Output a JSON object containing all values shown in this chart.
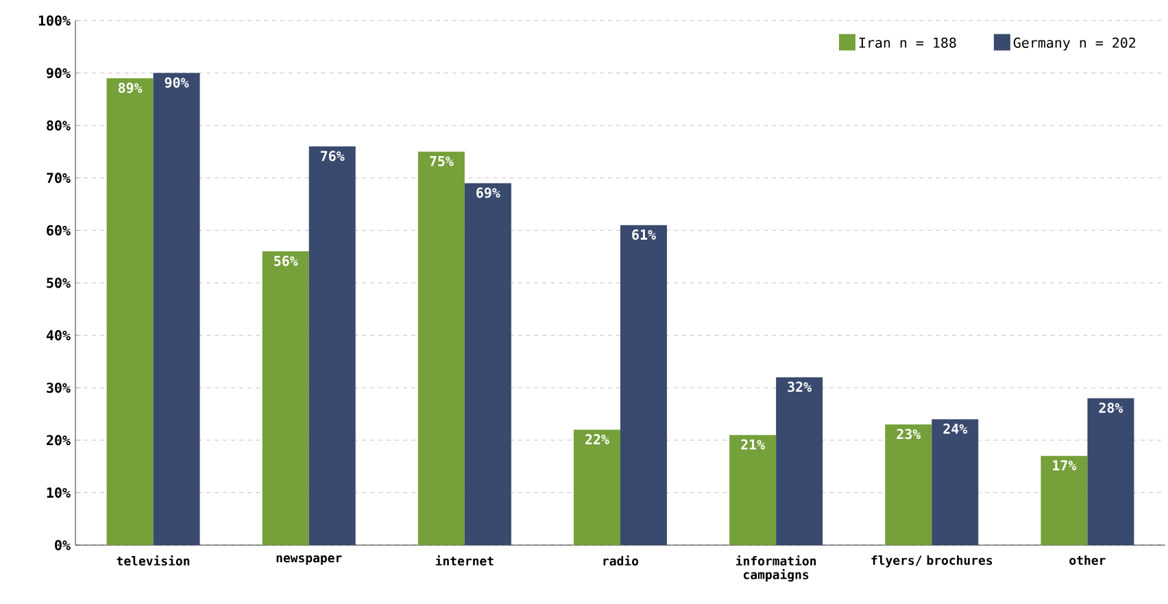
{
  "chart_data": {
    "type": "bar",
    "categories": [
      "television",
      "newspaper",
      "internet",
      "radio",
      "information campaigns",
      "flyers/ brochures",
      "other"
    ],
    "series": [
      {
        "name": "Iran n = 188",
        "color": "#76a03a",
        "values": [
          89,
          56,
          75,
          22,
          21,
          23,
          17
        ],
        "value_labels": [
          "89%",
          "56%",
          "75%",
          "22%",
          "21%",
          "23%",
          "17%"
        ]
      },
      {
        "name": "Germany n = 202",
        "color": "#3a4a6e",
        "values": [
          90,
          76,
          69,
          61,
          32,
          24,
          28
        ],
        "value_labels": [
          "90%",
          "76%",
          "69%",
          "61%",
          "32%",
          "24%",
          "28%"
        ]
      }
    ],
    "ylim": [
      0,
      100
    ],
    "yticks": [
      {
        "value": 0,
        "label": "0%"
      },
      {
        "value": 10,
        "label": "10%"
      },
      {
        "value": 20,
        "label": "20%"
      },
      {
        "value": 30,
        "label": "30%"
      },
      {
        "value": 40,
        "label": "40%"
      },
      {
        "value": 50,
        "label": "50%"
      },
      {
        "value": 60,
        "label": "60%"
      },
      {
        "value": 70,
        "label": "70%"
      },
      {
        "value": 80,
        "label": "80%"
      },
      {
        "value": 90,
        "label": "90%"
      },
      {
        "value": 100,
        "label": "100%"
      }
    ],
    "grid": "y",
    "legend": "top right"
  }
}
